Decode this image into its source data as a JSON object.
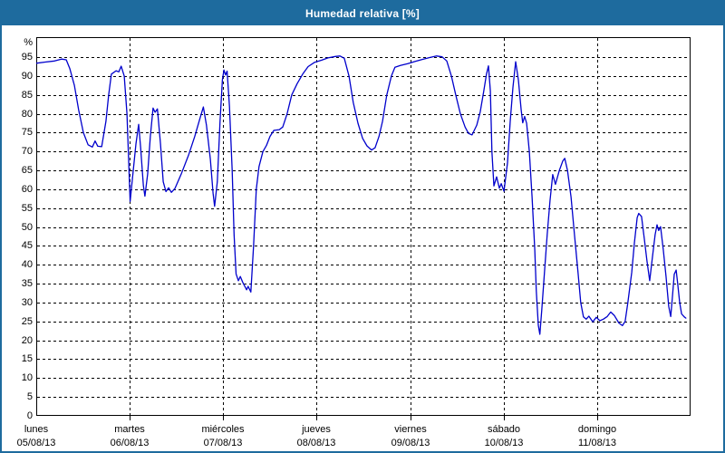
{
  "window": {
    "title": "Humedad relativa [%]"
  },
  "colors": {
    "titlebar_bg": "#1E6B9E",
    "frame_border": "#1E6B9E",
    "line": "#0000CC",
    "grid": "#000000",
    "text": "#000000",
    "plot_bg": "#FFFFFF"
  },
  "chart_data": {
    "type": "line",
    "title": "Humedad relativa [%]",
    "ylabel": "%",
    "y_unit_label": "%",
    "grid": true,
    "legend": false,
    "y_axis": {
      "min": 0,
      "max": 100,
      "tick_step": 5,
      "first_tick": 5,
      "last_tick": 95,
      "origin_label": "0",
      "tick_labels": [
        "95",
        "90",
        "85",
        "80",
        "75",
        "70",
        "65",
        "60",
        "55",
        "50",
        "45",
        "40",
        "35",
        "30",
        "25",
        "20",
        "15",
        "10",
        "5",
        "0"
      ]
    },
    "x_axis": {
      "unit": "hours",
      "range_hours": [
        0,
        168
      ],
      "hours_per_day": 24,
      "days": [
        {
          "name": "lunes",
          "date": "05/08/13"
        },
        {
          "name": "martes",
          "date": "06/08/13"
        },
        {
          "name": "miércoles",
          "date": "07/08/13"
        },
        {
          "name": "jueves",
          "date": "08/08/13"
        },
        {
          "name": "viernes",
          "date": "09/08/13"
        },
        {
          "name": "sábado",
          "date": "10/08/13"
        },
        {
          "name": "domingo",
          "date": "11/08/13"
        }
      ]
    },
    "series": [
      {
        "name": "Humedad relativa",
        "unit": "%",
        "points": [
          [
            0,
            93.4
          ],
          [
            2.3,
            93.7
          ],
          [
            4.7,
            94.0
          ],
          [
            6.5,
            94.5
          ],
          [
            7.7,
            94.3
          ],
          [
            8.6,
            92.0
          ],
          [
            9.8,
            87.5
          ],
          [
            10.9,
            81.0
          ],
          [
            12.1,
            75.0
          ],
          [
            13.3,
            71.8
          ],
          [
            14.4,
            71.2
          ],
          [
            15.1,
            72.8
          ],
          [
            15.8,
            71.4
          ],
          [
            16.8,
            71.3
          ],
          [
            17.9,
            78.0
          ],
          [
            18.6,
            85.0
          ],
          [
            19.3,
            90.5
          ],
          [
            20.5,
            91.4
          ],
          [
            21.2,
            91.1
          ],
          [
            21.8,
            92.6
          ],
          [
            22.6,
            90.0
          ],
          [
            23.3,
            80.0
          ],
          [
            24.1,
            56.8
          ],
          [
            24.7,
            63.0
          ],
          [
            25.6,
            72.0
          ],
          [
            26.3,
            77.2
          ],
          [
            26.8,
            71.0
          ],
          [
            27.5,
            61.0
          ],
          [
            27.9,
            58.2
          ],
          [
            28.6,
            64.0
          ],
          [
            29.3,
            74.0
          ],
          [
            30.0,
            81.5
          ],
          [
            30.5,
            80.4
          ],
          [
            31.1,
            81.3
          ],
          [
            31.9,
            72.0
          ],
          [
            32.6,
            62.0
          ],
          [
            33.3,
            59.4
          ],
          [
            34.0,
            60.4
          ],
          [
            34.7,
            59.2
          ],
          [
            35.6,
            60.2
          ],
          [
            37.2,
            64.0
          ],
          [
            39.1,
            69.0
          ],
          [
            40.7,
            74.0
          ],
          [
            42.1,
            79.0
          ],
          [
            42.9,
            81.8
          ],
          [
            43.7,
            77.0
          ],
          [
            44.7,
            68.0
          ],
          [
            45.4,
            59.0
          ],
          [
            45.8,
            55.5
          ],
          [
            46.5,
            62.0
          ],
          [
            47.2,
            78.0
          ],
          [
            47.8,
            89.0
          ],
          [
            48.2,
            91.6
          ],
          [
            48.6,
            90.3
          ],
          [
            49.0,
            91.3
          ],
          [
            49.6,
            82.0
          ],
          [
            50.3,
            65.0
          ],
          [
            50.8,
            48.0
          ],
          [
            51.3,
            37.6
          ],
          [
            51.9,
            35.8
          ],
          [
            52.4,
            36.9
          ],
          [
            53.0,
            35.4
          ],
          [
            54.0,
            33.4
          ],
          [
            54.4,
            34.3
          ],
          [
            55.1,
            32.8
          ],
          [
            55.8,
            45.0
          ],
          [
            56.5,
            60.0
          ],
          [
            57.2,
            66.0
          ],
          [
            58.2,
            70.0
          ],
          [
            59.1,
            71.6
          ],
          [
            60.0,
            74.0
          ],
          [
            61.0,
            75.6
          ],
          [
            62.4,
            75.8
          ],
          [
            63.3,
            76.5
          ],
          [
            64.4,
            80.0
          ],
          [
            65.6,
            85.0
          ],
          [
            67.0,
            88.0
          ],
          [
            68.4,
            90.5
          ],
          [
            69.8,
            92.5
          ],
          [
            71.4,
            93.6
          ],
          [
            73.3,
            94.2
          ],
          [
            74.9,
            94.8
          ],
          [
            76.8,
            95.2
          ],
          [
            78.0,
            95.3
          ],
          [
            79.1,
            94.7
          ],
          [
            80.3,
            90.0
          ],
          [
            81.4,
            83.0
          ],
          [
            82.6,
            77.5
          ],
          [
            83.8,
            73.5
          ],
          [
            84.9,
            71.5
          ],
          [
            86.1,
            70.4
          ],
          [
            87.0,
            71.0
          ],
          [
            88.0,
            74.0
          ],
          [
            88.9,
            78.0
          ],
          [
            90.0,
            85.0
          ],
          [
            91.2,
            90.0
          ],
          [
            92.1,
            92.3
          ],
          [
            93.5,
            92.8
          ],
          [
            95.4,
            93.3
          ],
          [
            97.3,
            93.9
          ],
          [
            99.1,
            94.4
          ],
          [
            101.0,
            94.9
          ],
          [
            102.8,
            95.3
          ],
          [
            104.2,
            95.1
          ],
          [
            105.4,
            94.0
          ],
          [
            106.6,
            90.0
          ],
          [
            107.7,
            85.0
          ],
          [
            108.9,
            80.0
          ],
          [
            110.1,
            76.5
          ],
          [
            111.0,
            74.8
          ],
          [
            111.9,
            74.4
          ],
          [
            113.1,
            77.0
          ],
          [
            114.0,
            80.5
          ],
          [
            114.9,
            86.0
          ],
          [
            115.6,
            90.5
          ],
          [
            116.1,
            92.7
          ],
          [
            116.6,
            86.0
          ],
          [
            117.0,
            70.0
          ],
          [
            117.5,
            60.9
          ],
          [
            118.2,
            63.3
          ],
          [
            118.9,
            60.3
          ],
          [
            119.4,
            61.5
          ],
          [
            120.1,
            59.5
          ],
          [
            121.0,
            67.0
          ],
          [
            121.7,
            78.0
          ],
          [
            122.4,
            87.0
          ],
          [
            123.1,
            93.8
          ],
          [
            123.8,
            89.0
          ],
          [
            124.5,
            81.0
          ],
          [
            124.9,
            77.6
          ],
          [
            125.4,
            79.3
          ],
          [
            125.9,
            77.5
          ],
          [
            126.6,
            70.0
          ],
          [
            127.3,
            58.0
          ],
          [
            128.0,
            44.0
          ],
          [
            128.4,
            33.0
          ],
          [
            128.9,
            24.0
          ],
          [
            129.3,
            21.6
          ],
          [
            129.8,
            28.0
          ],
          [
            130.5,
            38.0
          ],
          [
            131.2,
            48.0
          ],
          [
            131.9,
            57.0
          ],
          [
            132.6,
            63.9
          ],
          [
            133.3,
            61.3
          ],
          [
            134.3,
            65.0
          ],
          [
            135.2,
            67.5
          ],
          [
            135.7,
            68.2
          ],
          [
            136.4,
            65.0
          ],
          [
            137.3,
            58.0
          ],
          [
            138.2,
            48.0
          ],
          [
            139.1,
            38.0
          ],
          [
            139.8,
            30.0
          ],
          [
            140.5,
            26.2
          ],
          [
            141.2,
            25.6
          ],
          [
            141.9,
            26.4
          ],
          [
            142.9,
            24.9
          ],
          [
            143.8,
            26.1
          ],
          [
            144.7,
            25.2
          ],
          [
            145.6,
            25.6
          ],
          [
            146.6,
            26.3
          ],
          [
            147.5,
            27.5
          ],
          [
            148.4,
            26.6
          ],
          [
            149.6,
            24.6
          ],
          [
            150.5,
            23.9
          ],
          [
            151.2,
            25.0
          ],
          [
            151.9,
            30.0
          ],
          [
            152.9,
            38.0
          ],
          [
            153.6,
            46.0
          ],
          [
            154.3,
            52.5
          ],
          [
            154.7,
            53.6
          ],
          [
            155.4,
            52.8
          ],
          [
            156.1,
            47.0
          ],
          [
            156.8,
            41.0
          ],
          [
            157.5,
            35.8
          ],
          [
            158.2,
            42.0
          ],
          [
            158.9,
            48.0
          ],
          [
            159.4,
            50.6
          ],
          [
            159.8,
            49.1
          ],
          [
            160.3,
            50.1
          ],
          [
            161.0,
            44.0
          ],
          [
            161.7,
            37.0
          ],
          [
            162.4,
            29.0
          ],
          [
            162.9,
            26.3
          ],
          [
            163.3,
            31.0
          ],
          [
            163.8,
            37.5
          ],
          [
            164.3,
            38.6
          ],
          [
            164.7,
            35.0
          ],
          [
            165.2,
            30.0
          ],
          [
            165.7,
            27.0
          ],
          [
            166.4,
            26.2
          ],
          [
            166.8,
            25.9
          ]
        ]
      }
    ]
  }
}
